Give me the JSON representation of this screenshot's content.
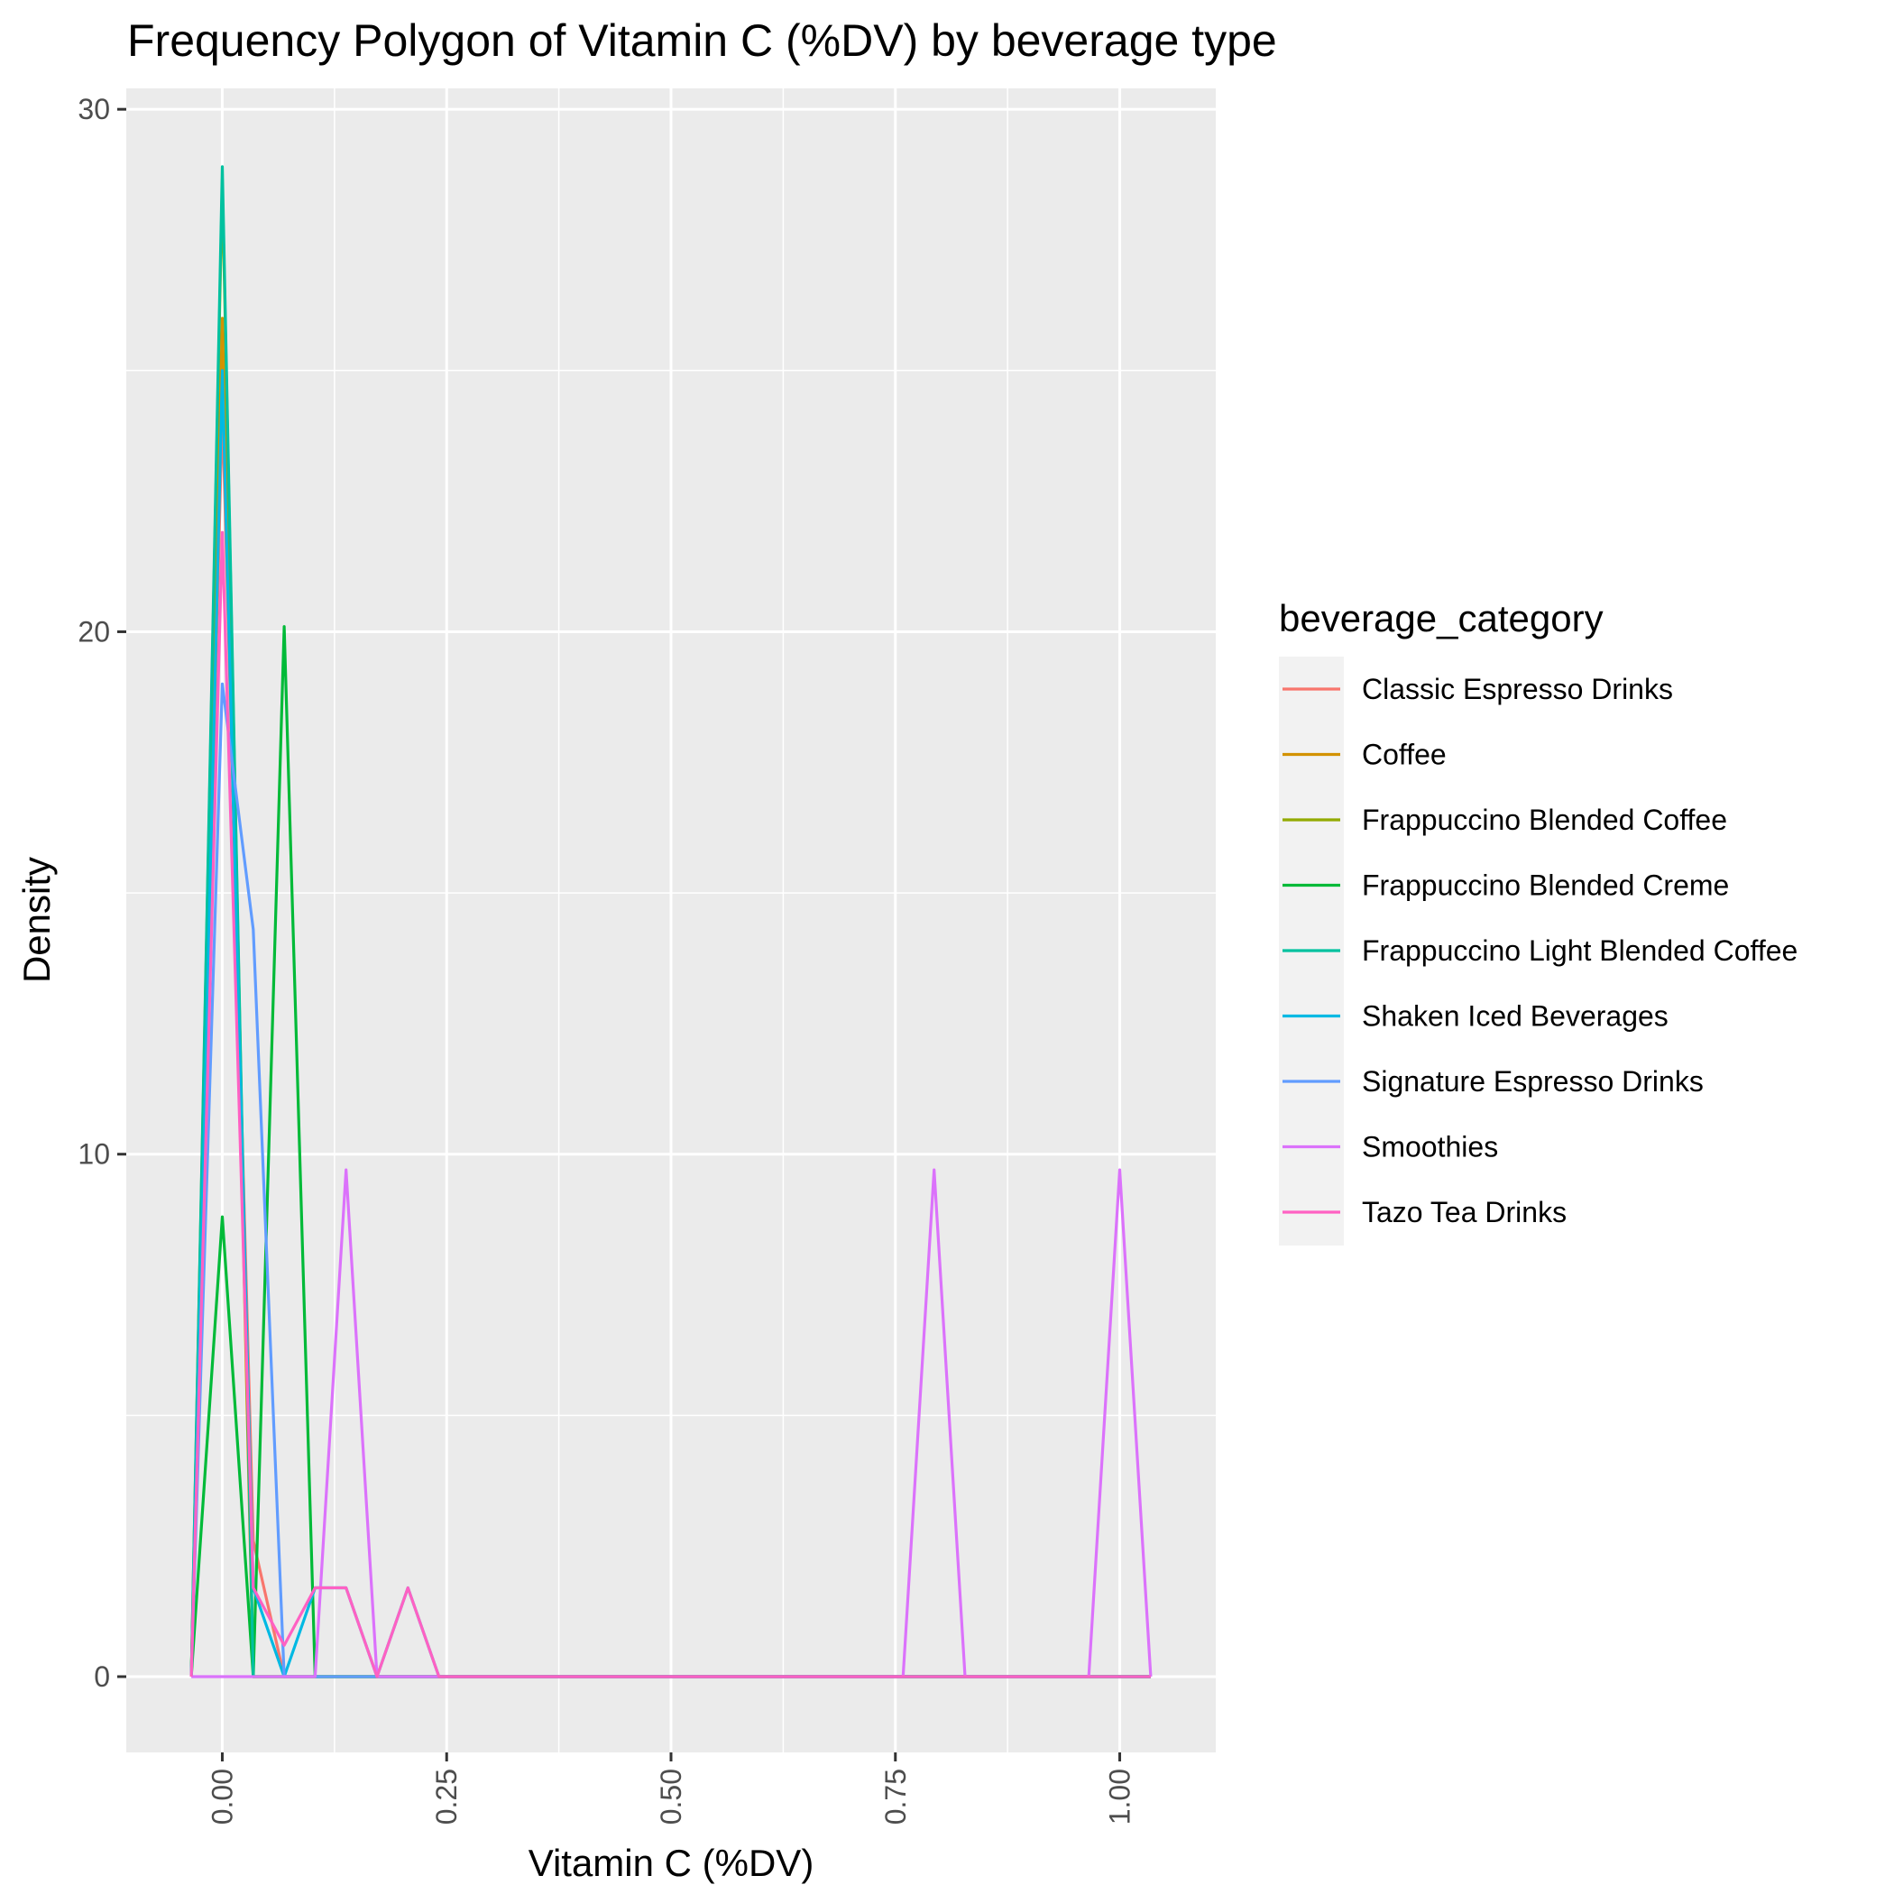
{
  "chart_data": {
    "type": "line",
    "title": "Frequency Polygon of Vitamin C (%DV) by beverage type",
    "xlabel": "Vitamin C (%DV)",
    "ylabel": "Density",
    "xlim": [
      -0.107,
      1.107
    ],
    "ylim": [
      -1.45,
      30.4
    ],
    "x_ticks": [
      0,
      0.25,
      0.5,
      0.75,
      1
    ],
    "x_tick_labels": [
      "0.00",
      "0.25",
      "0.50",
      "0.75",
      "1.00"
    ],
    "y_ticks": [
      0,
      10,
      20,
      30
    ],
    "y_tick_labels": [
      "0",
      "10",
      "20",
      "30"
    ],
    "x_minor_ticks": [
      0.125,
      0.375,
      0.625,
      0.875
    ],
    "y_minor_ticks": [
      5,
      15,
      25
    ],
    "grid": true,
    "legend_title": "beverage_category",
    "legend_position": "right",
    "x": [
      -0.0345,
      0,
      0.0345,
      0.069,
      0.1034,
      0.1379,
      0.1724,
      0.2069,
      0.2414,
      0.2759,
      0.3103,
      0.3448,
      0.3793,
      0.4138,
      0.4483,
      0.4828,
      0.5172,
      0.5517,
      0.5862,
      0.6207,
      0.6552,
      0.6897,
      0.7241,
      0.7586,
      0.7931,
      0.8276,
      0.8621,
      0.8966,
      0.931,
      0.9655,
      1,
      1.0345
    ],
    "series": [
      {
        "name": "Classic Espresso Drinks",
        "color": "#F8766D",
        "values": [
          0,
          24.3,
          2.6,
          0,
          0,
          0,
          0,
          0,
          0,
          0,
          0,
          0,
          0,
          0,
          0,
          0,
          0,
          0,
          0,
          0,
          0,
          0,
          0,
          0,
          0,
          0,
          0,
          0,
          0,
          0,
          0,
          0
        ]
      },
      {
        "name": "Coffee",
        "color": "#D39200",
        "values": [
          0,
          26.0,
          0,
          0,
          0,
          0,
          0,
          0,
          0,
          0,
          0,
          0,
          0,
          0,
          0,
          0,
          0,
          0,
          0,
          0,
          0,
          0,
          0,
          0,
          0,
          0,
          0,
          0,
          0,
          0,
          0,
          0
        ]
      },
      {
        "name": "Frappuccino Blended Coffee",
        "color": "#93AA00",
        "values": [
          0,
          28.6,
          0,
          0,
          0,
          0,
          0,
          0,
          0,
          0,
          0,
          0,
          0,
          0,
          0,
          0,
          0,
          0,
          0,
          0,
          0,
          0,
          0,
          0,
          0,
          0,
          0,
          0,
          0,
          0,
          0,
          0
        ]
      },
      {
        "name": "Frappuccino Blended Creme",
        "color": "#00BA38",
        "values": [
          0,
          8.8,
          0,
          20.1,
          0,
          0,
          0,
          0,
          0,
          0,
          0,
          0,
          0,
          0,
          0,
          0,
          0,
          0,
          0,
          0,
          0,
          0,
          0,
          0,
          0,
          0,
          0,
          0,
          0,
          0,
          0,
          0
        ]
      },
      {
        "name": "Frappuccino Light Blended Coffee",
        "color": "#00C19F",
        "values": [
          0,
          28.9,
          0,
          0,
          0,
          0,
          0,
          0,
          0,
          0,
          0,
          0,
          0,
          0,
          0,
          0,
          0,
          0,
          0,
          0,
          0,
          0,
          0,
          0,
          0,
          0,
          0,
          0,
          0,
          0,
          0,
          0
        ]
      },
      {
        "name": "Shaken Iced Beverages",
        "color": "#00B9E3",
        "values": [
          0,
          25.0,
          1.7,
          0,
          1.7,
          1.7,
          0,
          1.7,
          0,
          0,
          0,
          0,
          0,
          0,
          0,
          0,
          0,
          0,
          0,
          0,
          0,
          0,
          0,
          0,
          0,
          0,
          0,
          0,
          0,
          0,
          0,
          0
        ]
      },
      {
        "name": "Signature Espresso Drinks",
        "color": "#619CFF",
        "values": [
          0,
          19.0,
          14.3,
          0,
          0,
          0,
          0,
          0,
          0,
          0,
          0,
          0,
          0,
          0,
          0,
          0,
          0,
          0,
          0,
          0,
          0,
          0,
          0,
          0,
          0,
          0,
          0,
          0,
          0,
          0,
          0,
          0
        ]
      },
      {
        "name": "Smoothies",
        "color": "#DB72FB",
        "values": [
          0,
          0,
          0,
          0,
          0,
          9.7,
          0,
          0,
          0,
          0,
          0,
          0,
          0,
          0,
          0,
          0,
          0,
          0,
          0,
          0,
          0,
          0,
          0,
          0,
          9.7,
          0,
          0,
          0,
          0,
          0,
          9.7,
          0
        ]
      },
      {
        "name": "Tazo Tea Drinks",
        "color": "#FF61C3",
        "values": [
          0,
          21.9,
          1.7,
          0.6,
          1.7,
          1.7,
          0,
          1.7,
          0,
          0,
          0,
          0,
          0,
          0,
          0,
          0,
          0,
          0,
          0,
          0,
          0,
          0,
          0,
          0,
          0,
          0,
          0,
          0,
          0,
          0,
          0,
          0
        ]
      }
    ]
  }
}
